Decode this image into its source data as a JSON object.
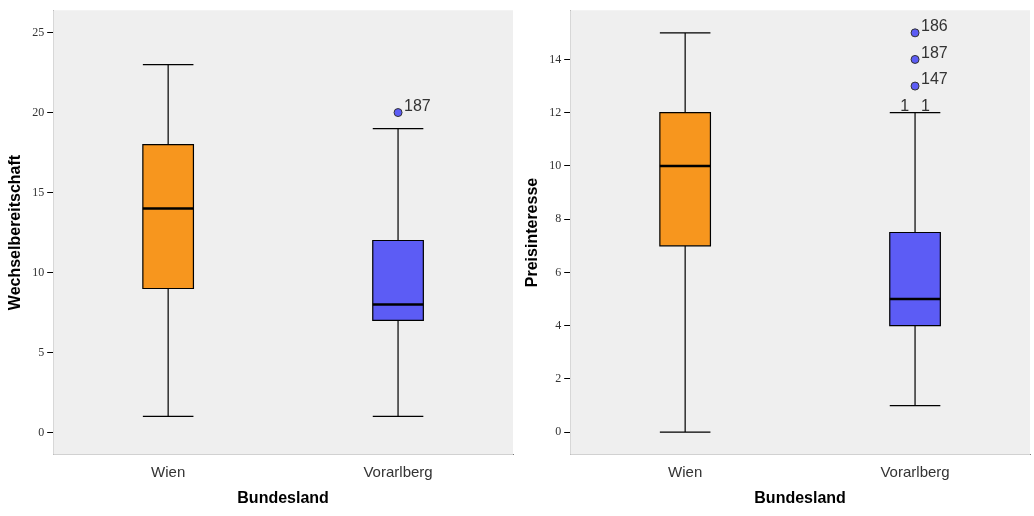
{
  "chart_data": [
    {
      "type": "box",
      "xlabel": "Bundesland",
      "ylabel": "Wechselbereitschaft",
      "categories": [
        "Wien",
        "Vorarlberg"
      ],
      "colors": [
        "#f7961e",
        "#5c5cf5"
      ],
      "boxes": [
        {
          "low": 1,
          "q1": 9,
          "median": 14,
          "q3": 18,
          "high": 23
        },
        {
          "low": 1,
          "q1": 7,
          "median": 8,
          "q3": 12,
          "high": 19,
          "outliers": [
            20
          ]
        }
      ],
      "ylim": [
        -1.4,
        26.4
      ],
      "yticks": [
        0,
        5,
        10,
        15,
        20,
        25
      ],
      "grid": false,
      "annotations": [
        "187"
      ]
    },
    {
      "type": "box",
      "xlabel": "Bundesland",
      "ylabel": "Preisinteresse",
      "categories": [
        "Wien",
        "Vorarlberg"
      ],
      "colors": [
        "#f7961e",
        "#5c5cf5"
      ],
      "boxes": [
        {
          "low": 0,
          "q1": 7,
          "median": 10,
          "q3": 12,
          "high": 15
        },
        {
          "low": 1,
          "q1": 4,
          "median": 5,
          "q3": 7.5,
          "high": 12,
          "outliers": [
            13,
            14,
            15
          ]
        }
      ],
      "ylim": [
        -0.85,
        15.85
      ],
      "yticks": [
        0,
        2,
        4,
        6,
        8,
        10,
        12,
        14
      ],
      "grid": false,
      "annotations": [
        "186",
        "187",
        "147",
        "1",
        "1"
      ]
    }
  ]
}
